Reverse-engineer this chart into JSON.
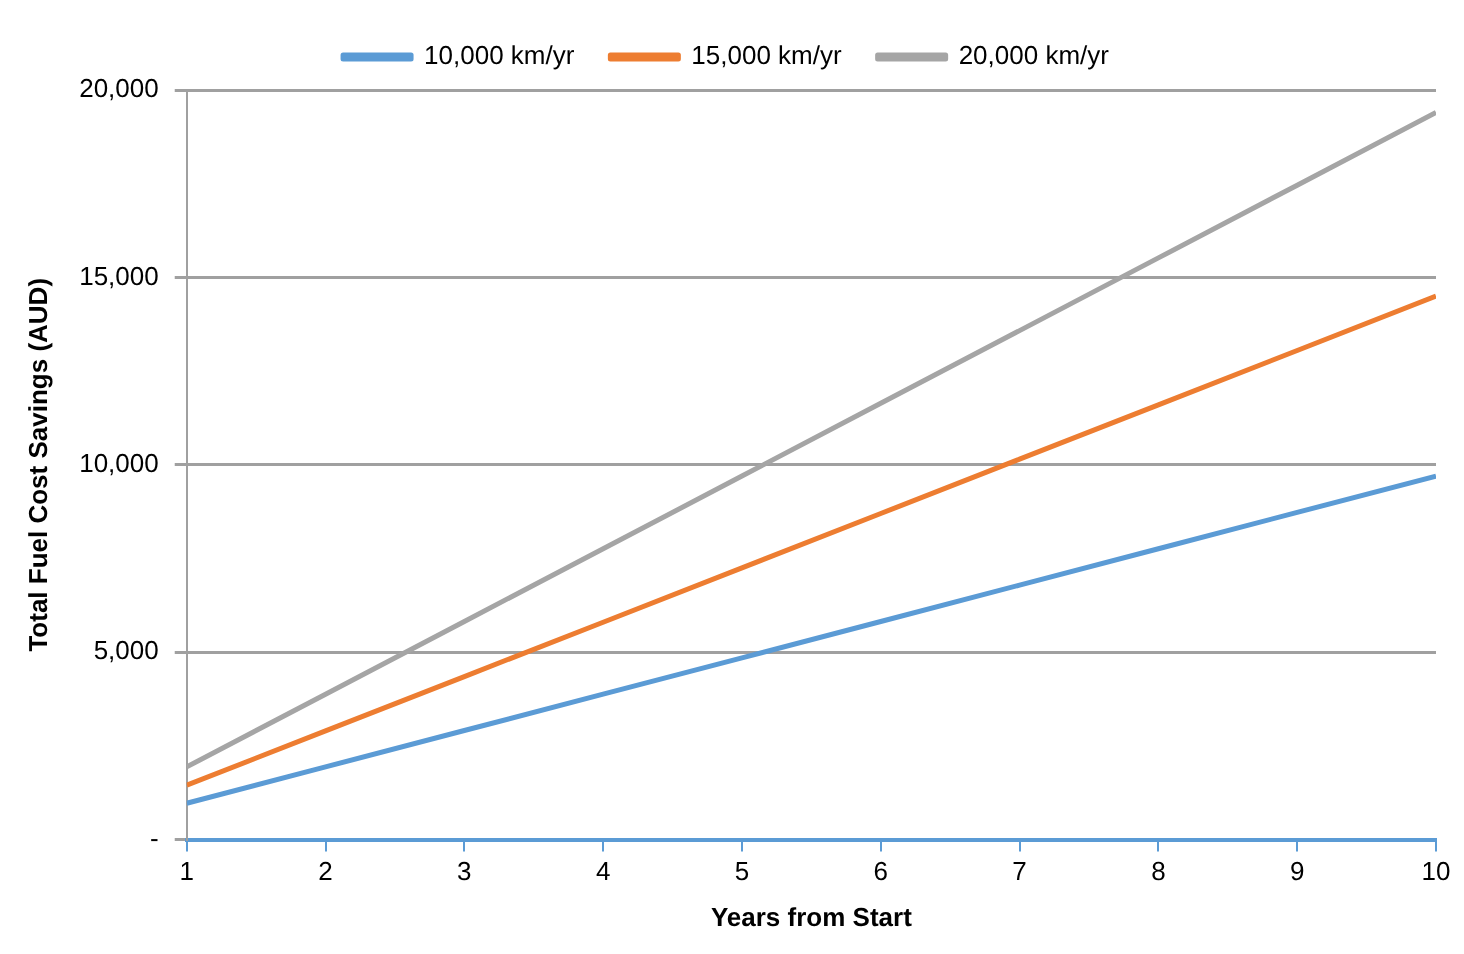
{
  "chart_data": {
    "type": "line",
    "xlabel": "Years from Start",
    "ylabel": "Total Fuel Cost Savings (AUD)",
    "x": [
      1,
      2,
      3,
      4,
      5,
      6,
      7,
      8,
      9,
      10
    ],
    "series": [
      {
        "name": "10,000 km/yr",
        "color": "#5b9bd5",
        "values": [
          970,
          1940,
          2910,
          3880,
          4850,
          5820,
          6790,
          7760,
          8730,
          9700
        ]
      },
      {
        "name": "15,000 km/yr",
        "color": "#ed7d31",
        "values": [
          1450,
          2900,
          4350,
          5800,
          7250,
          8700,
          10150,
          11600,
          13050,
          14500
        ]
      },
      {
        "name": "20,000 km/yr",
        "color": "#a5a5a5",
        "values": [
          1940,
          3880,
          5820,
          7760,
          9700,
          11640,
          13580,
          15520,
          17460,
          19400
        ]
      }
    ],
    "xlim": [
      1,
      10
    ],
    "xticks": [
      1,
      2,
      3,
      4,
      5,
      6,
      7,
      8,
      9,
      10
    ],
    "ylim": [
      0,
      20000
    ],
    "yticks": [
      {
        "value": 0,
        "label": "-"
      },
      {
        "value": 5000,
        "label": "5,000"
      },
      {
        "value": 10000,
        "label": "10,000"
      },
      {
        "value": 15000,
        "label": "15,000"
      },
      {
        "value": 20000,
        "label": "20,000"
      }
    ],
    "grid": "y",
    "legend": "top",
    "marker": "none",
    "line_style": "solid"
  }
}
